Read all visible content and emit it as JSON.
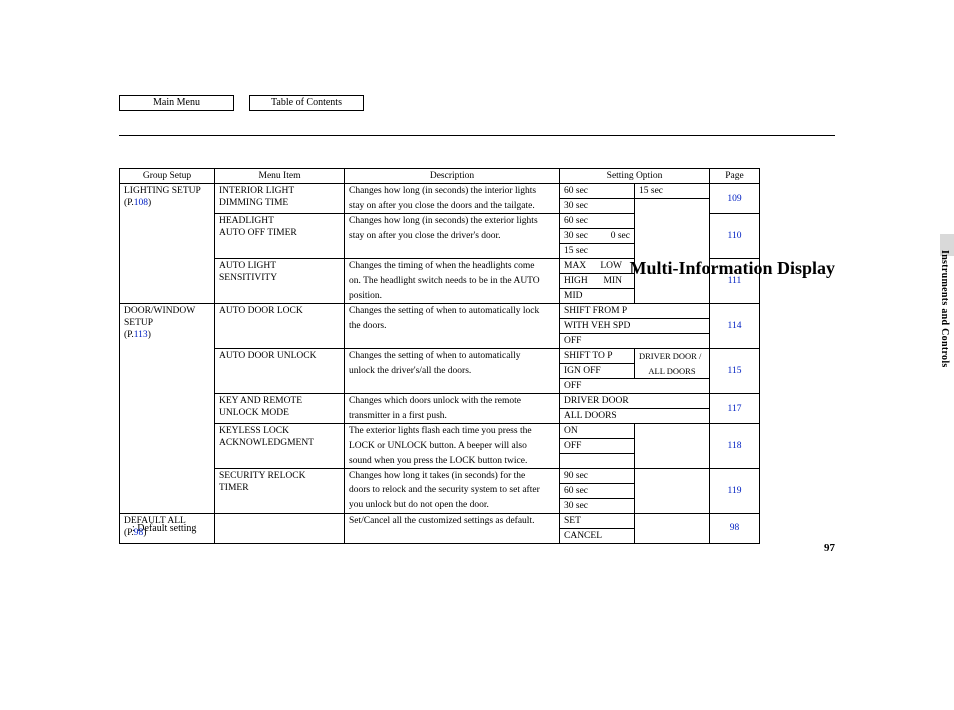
{
  "nav": {
    "main_menu": "Main Menu",
    "toc": "Table of Contents"
  },
  "title": "Multi-Information Display",
  "side_label": "Instruments and Controls",
  "page_number": "97",
  "footnote": ":   Default setting",
  "headers": {
    "group": "Group Setup",
    "item": "Menu Item",
    "desc": "Description",
    "option": "Setting Option",
    "page": "Page"
  },
  "groups": {
    "lighting": {
      "name": "LIGHTING SETUP",
      "ref_prefix": "(P.",
      "ref_page": "108",
      "ref_suffix": ")"
    },
    "door": {
      "name": "DOOR/WINDOW",
      "name2": "SETUP",
      "ref_prefix": "(P.",
      "ref_page": "113",
      "ref_suffix": ")"
    },
    "default": {
      "name": "DEFAULT ALL",
      "ref_prefix": "(P.",
      "ref_page": "98",
      "ref_suffix": ")"
    }
  },
  "items": {
    "int_light": {
      "l1": "INTERIOR LIGHT",
      "l2": "DIMMING TIME",
      "d1": "Changes how long (in seconds) the interior lights",
      "d2": "stay on after you close the doors and the tailgate.",
      "o_r1c1": "60 sec",
      "o_r1c2": "15 sec",
      "o_r2c1": "30 sec",
      "page": "109"
    },
    "headlight": {
      "l1": "HEADLIGHT",
      "l2": "AUTO OFF TIMER",
      "d1": "Changes how long (in seconds) the exterior lights",
      "d2": "stay on after you close the driver's door.",
      "o_r1c1": "60 sec",
      "o_r2c1": "30 sec",
      "o_r2c2": "0 sec",
      "o_r3c1": "15 sec",
      "page": "110"
    },
    "autolight": {
      "l1": "AUTO LIGHT",
      "l2": "SENSITIVITY",
      "d1": "Changes the timing of when the headlights come",
      "d2": "on. The headlight switch needs to be in the AUTO",
      "d3": "position.",
      "o_r1c1": "MAX",
      "o_r1c2": "LOW",
      "o_r2c1": "HIGH",
      "o_r2c2": "MIN",
      "o_r3c1": "MID",
      "page": "111"
    },
    "doorlock": {
      "l1": "AUTO DOOR LOCK",
      "d1": "Changes the setting of when to automatically lock",
      "d2": "the doors.",
      "o_r1": "SHIFT FROM P",
      "o_r2": "WITH VEH SPD",
      "o_r3": "OFF",
      "page": "114"
    },
    "doorunlock": {
      "l1": "AUTO DOOR UNLOCK",
      "d1": "Changes the setting of when to automatically",
      "d2": "unlock the driver's/all the doors.",
      "o_r1c1": "SHIFT TO P",
      "o_r1c2": "DRIVER DOOR /",
      "o_r2c1": "IGN OFF",
      "o_r2c2": "ALL DOORS",
      "o_r3": "OFF",
      "page": "115"
    },
    "keyremote": {
      "l1": "KEY AND REMOTE",
      "l2": "UNLOCK MODE",
      "d1": "Changes which doors unlock with the remote",
      "d2": "transmitter in a first push.",
      "o_r1": "DRIVER DOOR",
      "o_r2": "ALL DOORS",
      "page": "117"
    },
    "keyless": {
      "l1": "KEYLESS LOCK",
      "l2": "ACKNOWLEDGMENT",
      "d1": "The exterior lights flash each time you press the",
      "d2": "LOCK or UNLOCK button. A beeper will also",
      "d3": "sound when you press the LOCK button twice.",
      "o_r1": "ON",
      "o_r2": "OFF",
      "page": "118"
    },
    "relock": {
      "l1": "SECURITY RELOCK",
      "l2": "TIMER",
      "d1": "Changes how long it takes (in seconds) for the",
      "d2": "doors to relock and the security system to set after",
      "d3": "you unlock but do not open the door.",
      "o_r1": "90 sec",
      "o_r2": "60 sec",
      "o_r3": "30 sec",
      "page": "119"
    },
    "defaultall": {
      "d1": "Set/Cancel all the customized settings as default.",
      "o_r1": "SET",
      "o_r2": "CANCEL",
      "page": "98"
    }
  }
}
